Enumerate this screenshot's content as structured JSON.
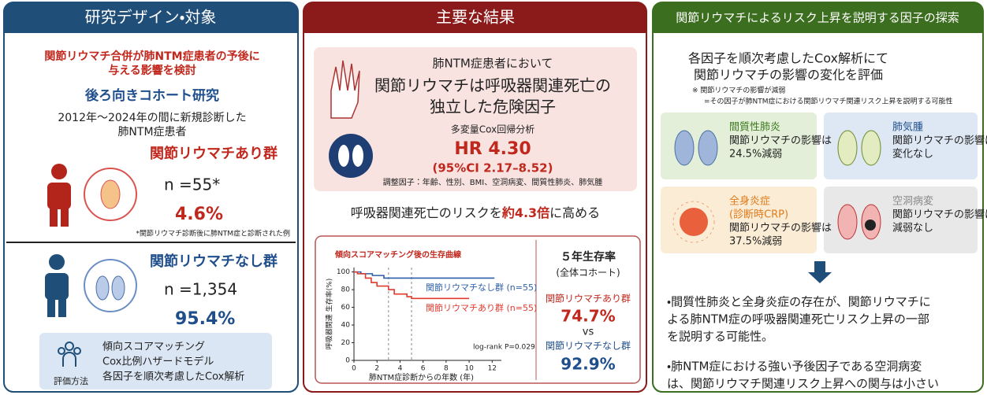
{
  "left": {
    "header": "研究デザイン・対象",
    "aim": [
      "関節リウマチ合併が肺NTM症患者の予後に",
      "与える影響を検討"
    ],
    "design": "後ろ向きコホート研究",
    "population": [
      "2012年～2024年の間に新規診断した",
      "肺NTM症患者"
    ],
    "groups": [
      {
        "name": "関節リウマチあり群",
        "n": "n =55*",
        "pct": "4.6%",
        "note": "*関節リウマチ診断後に肺NTM症と診断された例"
      },
      {
        "name": "関節リウマチなし群",
        "n": "n =1,354",
        "pct": "95.4%"
      }
    ],
    "methods": {
      "label": "評価方法",
      "items": [
        "傾向スコアマッチング",
        "Cox比例ハザードモデル",
        "各因子を順次考慮したCox解析"
      ]
    }
  },
  "middle": {
    "header": "主要な結果",
    "intro": "肺NTM症患者において",
    "finding": [
      "関節リウマチは呼吸器関連死亡の",
      "独立した危険因子"
    ],
    "analysis": "多変量Cox回帰分析",
    "hr": "HR 4.30",
    "ci": "(95%CI 2.17–8.52)",
    "adjust": "調整因子：年齢、性別、BMI、空洞病変、間質性肺炎、肺気腫",
    "summary": [
      "呼吸器関連死亡のリスクを",
      "約4.3倍",
      "に高める"
    ],
    "survival5": {
      "title": "５年生存率",
      "sub": "(全体コホート)",
      "ra_label": "関節リウマチあり群",
      "ra_value": "74.7%",
      "vs": "vs",
      "nonra_label": "関節リウマチなし群",
      "nonra_value": "92.9%"
    }
  },
  "right": {
    "header": "関節リウマチによるリスク上昇を説明する因子の探索",
    "intro": [
      "各因子を順次考慮したCox解析にて",
      "関節リウマチの影響の変化を評価"
    ],
    "note": [
      "※ 関節リウマチの影響が減弱",
      "=その因子が肺NTM症における関節リウマチ関連リスク上昇を説明する可能性"
    ],
    "factors": [
      {
        "title": [
          "間質性肺炎"
        ],
        "text": [
          "関節リウマチの影響は",
          "24.5%減弱"
        ]
      },
      {
        "title": [
          "肺気腫"
        ],
        "text": [
          "関節リウマチの影響は",
          "変化なし"
        ]
      },
      {
        "title": [
          "全身炎症",
          "(診断時CRP)"
        ],
        "text": [
          "関節リウマチの影響は",
          "37.5%減弱"
        ]
      },
      {
        "title": [
          "空洞病変"
        ],
        "text": [
          "関節リウマチの影響は",
          "減弱なし"
        ]
      }
    ],
    "conclusions": [
      [
        "・間質性肺炎と全身炎症の存在が、関節リウマチに",
        "よる肺NTM症の呼吸器関連死亡リスク上昇の一部",
        "を説明する可能性。"
      ],
      [
        "・肺NTM症における強い予後因子である空洞病変",
        "は、関節リウマチ関連リスク上昇への関与は小さい"
      ]
    ]
  },
  "chart_data": {
    "type": "line",
    "step": true,
    "title": "傾向スコアマッチング後の生存曲線",
    "x_label": "肺NTM症診断からの年数 (年)",
    "y_label": "呼吸器関連 生存率(%)",
    "xlim": [
      0,
      12.8
    ],
    "ylim": [
      0,
      105
    ],
    "xticks": [
      0,
      2,
      4,
      6,
      8,
      10,
      12
    ],
    "yticks": [
      0,
      20,
      40,
      60,
      80,
      100
    ],
    "reference_lines_x": [
      3,
      5
    ],
    "annotation": "log-rank P=0.029",
    "series": [
      {
        "name": "関節リウマチなし群 (n=55)",
        "color": "#2e5fa8",
        "x": [
          0,
          0.6,
          1.6,
          2.6,
          12.2
        ],
        "values": [
          100,
          98,
          96,
          93,
          93
        ]
      },
      {
        "name": "関節リウマチあり群 (n=55)",
        "color": "#e03a2f",
        "x": [
          0,
          0.3,
          1,
          1.5,
          2,
          3,
          3.5,
          4.6,
          5,
          10
        ],
        "values": [
          100,
          98,
          93,
          88,
          84,
          80,
          75,
          72,
          70,
          70
        ]
      }
    ]
  }
}
